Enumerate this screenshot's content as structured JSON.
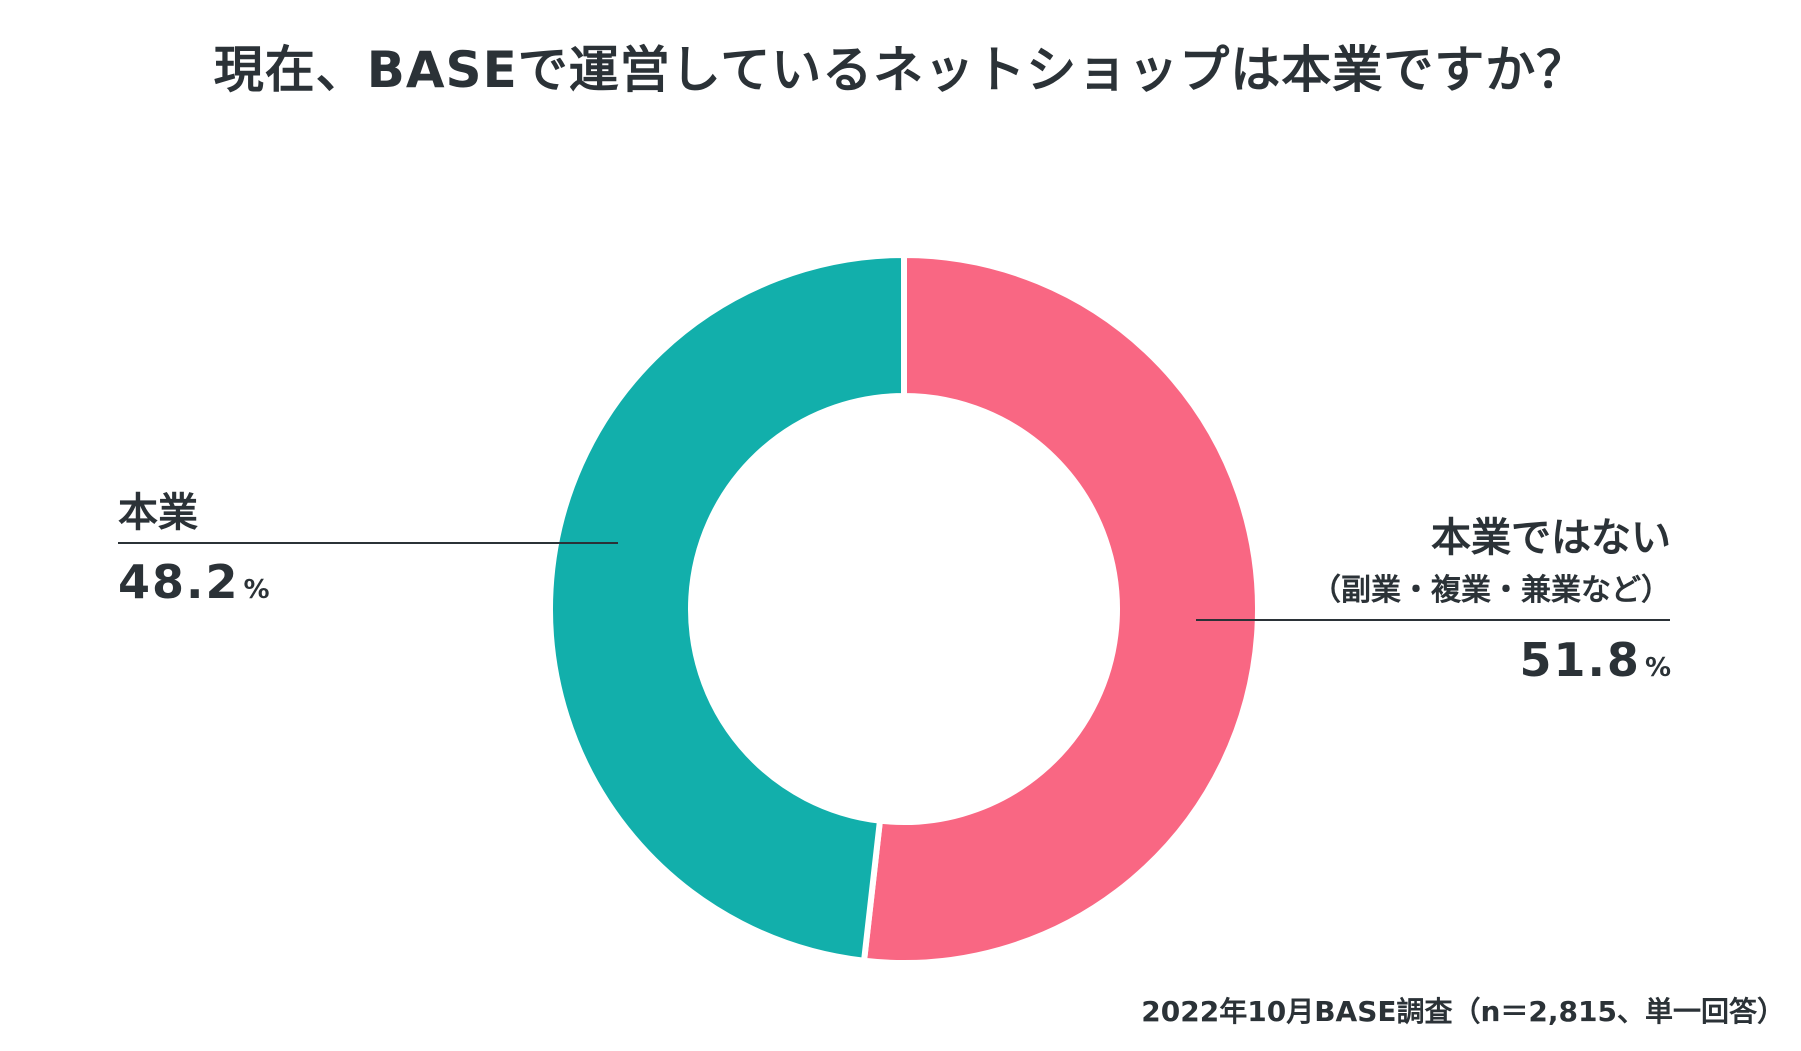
{
  "title": "現在、BASEで運営しているネットショップは本業ですか？",
  "source": "2022年10月BASE調査（n＝2,815、単一回答）",
  "colors": {
    "honbgyo": "#12afab",
    "not_honbgyo": "#f96783",
    "text": "#2b3237",
    "separator": "#ffffff"
  },
  "chart_data": {
    "type": "pie",
    "donut": true,
    "start": "top",
    "direction": "clockwise",
    "slices": [
      {
        "label": "本業ではない",
        "sublabel": "（副業・複業・兼業など）",
        "value": 51.8,
        "value_text": "51.8",
        "unit": "%",
        "color": "#f96783",
        "callout_side": "right"
      },
      {
        "label": "本業",
        "sublabel": "",
        "value": 48.2,
        "value_text": "48.2",
        "unit": "%",
        "color": "#12afab",
        "callout_side": "left"
      }
    ]
  }
}
